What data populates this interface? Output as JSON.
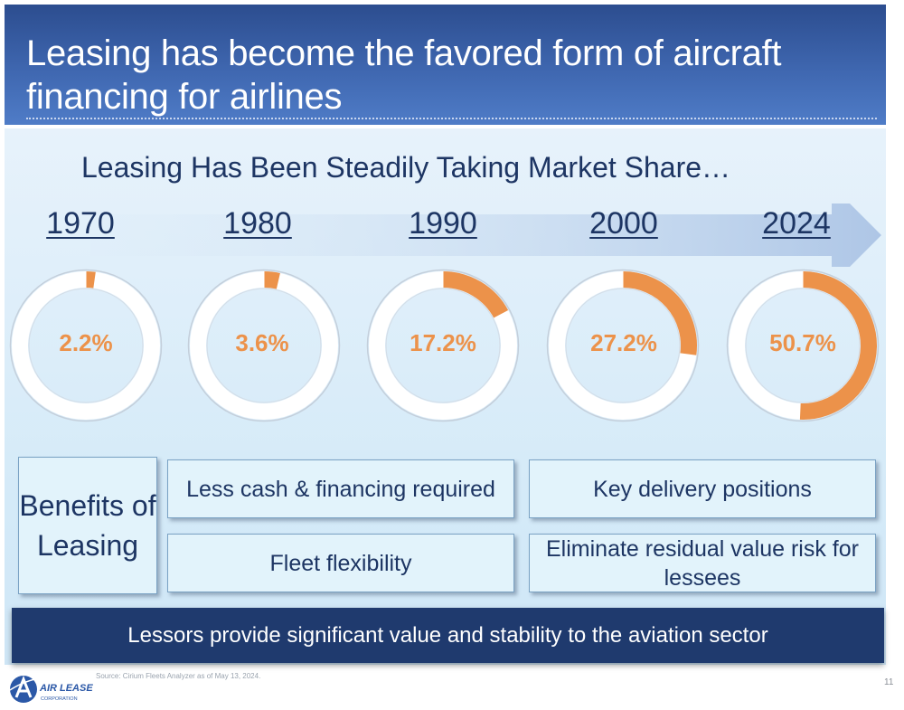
{
  "header": {
    "title": "Leasing has become the favored form of aircraft financing for airlines"
  },
  "subtitle": "Leasing Has Been Steadily Taking Market Share…",
  "chart_data": {
    "type": "donut",
    "title": "Leasing Has Been Steadily Taking Market Share…",
    "categories": [
      "1970",
      "1980",
      "1990",
      "2000",
      "2024"
    ],
    "values": [
      2.2,
      3.6,
      17.2,
      27.2,
      50.7
    ],
    "value_labels": [
      "2.2%",
      "3.6%",
      "17.2%",
      "27.2%",
      "50.7%"
    ],
    "unit": "%",
    "max": 100
  },
  "benefits": {
    "title": "Benefits of Leasing",
    "items": [
      "Less cash & financing required",
      "Key delivery positions",
      "Fleet flexibility",
      "Eliminate residual value risk for lessees"
    ]
  },
  "banner": "Lessors provide significant value and stability to the aviation sector",
  "source": "Source: Cirium Fleets Analyzer as of May 13, 2024.",
  "page_number": "11",
  "logo": {
    "name": "AIR LEASE",
    "sub": "CORPORATION"
  },
  "colors": {
    "accent": "#ec924a",
    "navy": "#1f3a6e",
    "header_blue": "#3a62ad",
    "ring": "#ffffff"
  }
}
